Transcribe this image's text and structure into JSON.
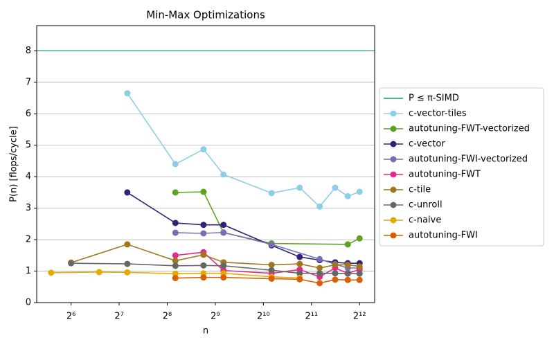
{
  "chart_data": {
    "type": "line",
    "title": "Min-Max Optimizations",
    "xlabel": "n",
    "ylabel": "P(n) [flops/cycle]",
    "xscale": "log2",
    "xlim": [
      39,
      5090
    ],
    "ylim": [
      0,
      8.8
    ],
    "xticks": [
      {
        "value": 64,
        "label": "2⁶"
      },
      {
        "value": 128,
        "label": "2⁷"
      },
      {
        "value": 256,
        "label": "2⁸"
      },
      {
        "value": 512,
        "label": "2⁹"
      },
      {
        "value": 1024,
        "label": "2¹⁰"
      },
      {
        "value": 2048,
        "label": "2¹¹"
      },
      {
        "value": 4096,
        "label": "2¹²"
      }
    ],
    "yticks": [
      0,
      1,
      2,
      3,
      4,
      5,
      6,
      7,
      8
    ],
    "grid": "y",
    "legend": "outside-right",
    "hlines": [
      {
        "name": "P ≤ π-SIMD",
        "value": 8,
        "color": "#1a9e77"
      }
    ],
    "series": [
      {
        "name": "c-vector-tiles",
        "color": "#8ecde8",
        "x": [
          144,
          288,
          432,
          576,
          1152,
          1728,
          2304,
          2880,
          3456,
          4096
        ],
        "values": [
          6.65,
          4.4,
          4.87,
          4.07,
          3.48,
          3.65,
          3.05,
          3.65,
          3.38,
          3.52
        ]
      },
      {
        "name": "autotuning-FWT-vectorized",
        "color": "#5fa322",
        "x": [
          288,
          432,
          576,
          1152,
          3456,
          4096
        ],
        "values": [
          3.5,
          3.52,
          2.22,
          1.88,
          1.85,
          2.04
        ]
      },
      {
        "name": "c-vector",
        "color": "#2d2379",
        "x": [
          144,
          288,
          432,
          576,
          1152,
          1728,
          2304,
          2880,
          3456,
          4096
        ],
        "values": [
          3.5,
          2.53,
          2.47,
          2.47,
          1.82,
          1.45,
          1.35,
          1.28,
          1.25,
          1.25
        ]
      },
      {
        "name": "autotuning-FWI-vectorized",
        "color": "#7570b3",
        "x": [
          288,
          432,
          576,
          1152,
          2304,
          2880,
          3456,
          4096
        ],
        "values": [
          2.22,
          2.2,
          2.23,
          1.85,
          1.38,
          1.22,
          1.1,
          1.1
        ]
      },
      {
        "name": "autotuning-FWT",
        "color": "#e7298a",
        "x": [
          288,
          432,
          576,
          1152,
          1728,
          2304,
          2880,
          3456,
          4096
        ],
        "values": [
          1.5,
          1.6,
          1.02,
          0.93,
          1.05,
          0.82,
          1.1,
          0.93,
          1.05
        ]
      },
      {
        "name": "c-tile",
        "color": "#a0771f",
        "x": [
          64,
          144,
          288,
          432,
          576,
          1152,
          1728,
          2304,
          2880,
          3456,
          4096
        ],
        "values": [
          1.27,
          1.85,
          1.33,
          1.52,
          1.28,
          1.2,
          1.23,
          1.1,
          1.2,
          1.2,
          1.15
        ]
      },
      {
        "name": "c-unroll",
        "color": "#666666",
        "x": [
          64,
          144,
          288,
          432,
          576,
          1152,
          1728,
          2304,
          2880,
          3456,
          4096
        ],
        "values": [
          1.25,
          1.23,
          1.17,
          1.18,
          1.17,
          1.03,
          0.93,
          0.93,
          0.93,
          0.92,
          0.92
        ]
      },
      {
        "name": "c-naive",
        "color": "#e6ab02",
        "x": [
          48,
          96,
          144,
          288,
          432,
          576,
          1152,
          1728
        ],
        "values": [
          0.95,
          0.97,
          0.96,
          0.92,
          0.93,
          0.93,
          0.82,
          0.78
        ]
      },
      {
        "name": "autotuning-FWI",
        "color": "#d95f02",
        "x": [
          288,
          432,
          576,
          1152,
          1728,
          2304,
          2880,
          3456,
          4096
        ],
        "values": [
          0.78,
          0.8,
          0.8,
          0.76,
          0.74,
          0.62,
          0.73,
          0.72,
          0.72
        ]
      }
    ]
  }
}
